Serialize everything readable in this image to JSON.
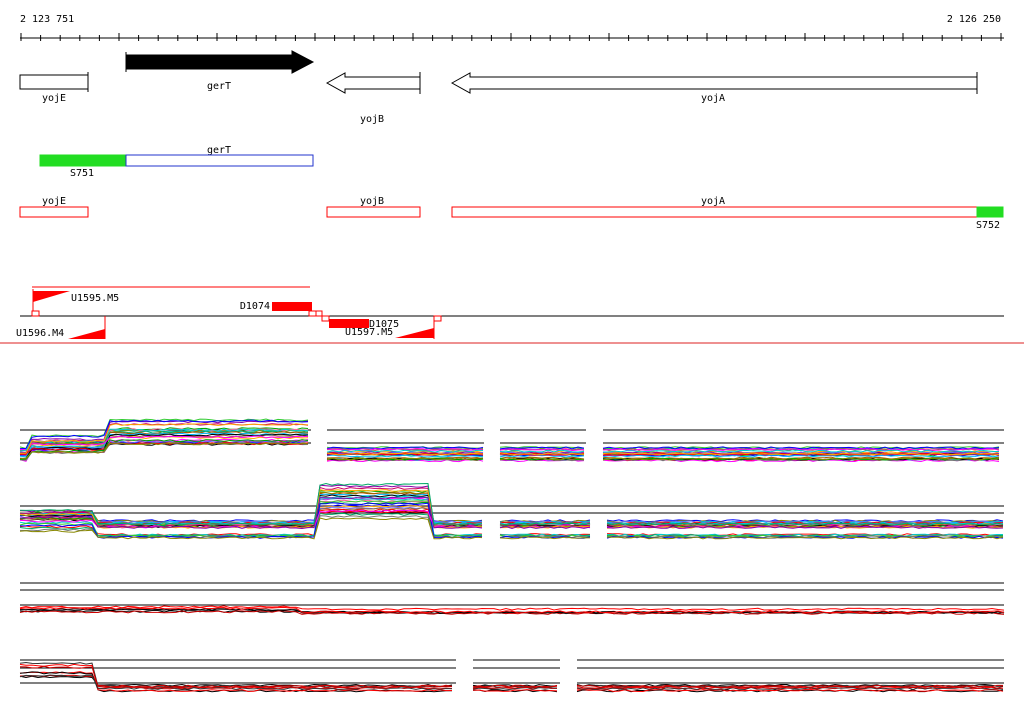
{
  "ruler": {
    "start_label": "2 123 751",
    "end_label": "2 126 250"
  },
  "genes": {
    "yojE": "yojE",
    "gerT": "gerT",
    "yojB": "yojB",
    "yojA": "yojA"
  },
  "transcript_track": {
    "gerT_label": "gerT",
    "S751_label": "S751"
  },
  "region_track": {
    "yojE_label": "yojE",
    "yojB_label": "yojB",
    "yojA_label": "yojA",
    "S752_label": "S752"
  },
  "features": {
    "U1595": "U1595.M5",
    "D1074": "D1074",
    "U1596": "U1596.M4",
    "D1075": "D1075",
    "U1597": "U1597.M5"
  },
  "colors": {
    "gene_fill": "#000000",
    "green": "#22dd22",
    "blue_outline": "#2233cc",
    "red": "#ff0000",
    "separator": "#dd2222"
  },
  "icons": [
    "arrow-right-filled",
    "arrow-left-outline",
    "red-triangle-marker"
  ]
}
